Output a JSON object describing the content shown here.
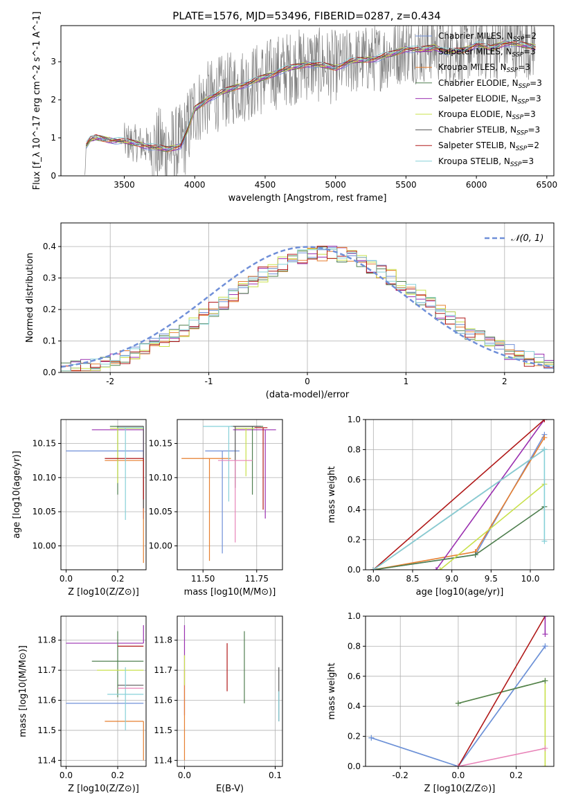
{
  "figure": {
    "title": "PLATE=1576, MJD=53496, FIBERID=0287, z=0.434"
  },
  "colors": {
    "gray": "#808080",
    "blue": "#6f8fd8",
    "orange": "#e67e2e",
    "green": "#4f7f4f",
    "purple": "#9a2fb0",
    "yellowgreen": "#c8e04a",
    "darkgray": "#555555",
    "red": "#b01818",
    "cyan": "#86d0d8",
    "pink": "#e883b8"
  },
  "chart_data": [
    {
      "type": "line",
      "xlabel": "wavelength [Angstrom, rest frame]",
      "ylabel": "Flux [f_λ 10^-17 erg cm^-2 s^-1 A^-1]",
      "xlim": [
        3050,
        6550
      ],
      "ylim": [
        0,
        3.95
      ],
      "xticks": [
        3500,
        4000,
        4500,
        5000,
        5500,
        6000,
        6500
      ],
      "yticks": [
        0,
        1,
        2,
        3
      ],
      "grid": false,
      "legend_position": "top-right",
      "data_series": {
        "name": "",
        "color": "gray",
        "x_range": [
          3220,
          6420
        ],
        "description_values": [
          0.8,
          0.9,
          1.05,
          1.5,
          2.2,
          2.6,
          3.1,
          3.4
        ]
      },
      "model_anchor_points": {
        "x": [
          3220,
          3230,
          3260,
          3300,
          3400,
          3500,
          3600,
          3700,
          3800,
          3900,
          3950,
          4000,
          4100,
          4200,
          4300,
          4400,
          4500,
          4600,
          4700,
          4800,
          4900,
          5000,
          5100,
          5200,
          5300,
          5400,
          5500,
          5600,
          5700,
          5800,
          5900,
          6000,
          6100,
          6200,
          6300,
          6420
        ],
        "y": [
          0,
          0.8,
          0.95,
          1.0,
          0.95,
          0.9,
          0.85,
          0.75,
          0.7,
          0.8,
          1.2,
          1.75,
          2.05,
          2.2,
          2.35,
          2.45,
          2.6,
          2.75,
          2.85,
          2.95,
          2.9,
          2.85,
          3.0,
          3.05,
          3.1,
          3.2,
          3.35,
          3.3,
          3.4,
          3.25,
          3.3,
          3.45,
          3.35,
          3.5,
          3.45,
          3.4
        ]
      },
      "series": [
        {
          "name": "Chabrier MILES, N_SSP=2",
          "label_main": "Chabrier MILES, N",
          "label_sub": "SSP",
          "label_end": "=2",
          "color": "blue"
        },
        {
          "name": "Salpeter MILES, N_SSP=3",
          "label_main": "Salpeter MILES, N",
          "label_sub": "SSP",
          "label_end": "=3",
          "color": "purple"
        },
        {
          "name": "Kroupa MILES, N_SSP=3",
          "label_main": "Kroupa MILES, N",
          "label_sub": "SSP",
          "label_end": "=3",
          "color": "orange"
        },
        {
          "name": "Chabrier ELODIE, N_SSP=3",
          "label_main": "Chabrier ELODIE, N",
          "label_sub": "SSP",
          "label_end": "=3",
          "color": "green"
        },
        {
          "name": "Salpeter ELODIE, N_SSP=3",
          "label_main": "Salpeter ELODIE, N",
          "label_sub": "SSP",
          "label_end": "=3",
          "color": "purple"
        },
        {
          "name": "Kroupa ELODIE, N_SSP=3",
          "label_main": "Kroupa ELODIE, N",
          "label_sub": "SSP",
          "label_end": "=3",
          "color": "yellowgreen"
        },
        {
          "name": "Chabrier STELIB, N_SSP=3",
          "label_main": "Chabrier STELIB, N",
          "label_sub": "SSP",
          "label_end": "=3",
          "color": "darkgray"
        },
        {
          "name": "Salpeter STELIB, N_SSP=2",
          "label_main": "Salpeter STELIB, N",
          "label_sub": "SSP",
          "label_end": "=2",
          "color": "red"
        },
        {
          "name": "Kroupa STELIB, N_SSP=3",
          "label_main": "Kroupa STELIB, N",
          "label_sub": "SSP",
          "label_end": "=3",
          "color": "cyan"
        }
      ]
    },
    {
      "type": "histogram",
      "xlabel": "(data-model)/error",
      "ylabel": "Normed distribution",
      "xlim": [
        -2.5,
        2.5
      ],
      "ylim": [
        0,
        0.475
      ],
      "xticks": [
        -2,
        -1,
        0,
        1,
        2
      ],
      "yticks": [
        0.0,
        0.1,
        0.2,
        0.3,
        0.4
      ],
      "grid": true,
      "legend_position": "top-right",
      "legend_label": "𝒩(0, 1)",
      "bin_width": 0.1,
      "gaussian": {
        "mean": 0,
        "sigma": 1,
        "color": "blue"
      },
      "histogram_colors": [
        "blue",
        "purple",
        "orange",
        "green",
        "yellowgreen",
        "red",
        "cyan"
      ]
    },
    {
      "type": "errorbar",
      "xlabel": "Z [log10(Z/Z⊙)]",
      "ylabel": "age  [log10(age/yr)]",
      "xlim": [
        -0.02,
        0.31
      ],
      "ylim": [
        9.965,
        10.185
      ],
      "xticks": [
        0.0,
        0.2
      ],
      "yticks": [
        10.0,
        10.05,
        10.1,
        10.15
      ],
      "grid": true,
      "points": [
        {
          "x": 0.3,
          "y": 10.139,
          "xerr": [
            0.3,
            0.0
          ],
          "yerr": [
            0.1,
            0.0
          ],
          "color": "blue"
        },
        {
          "x": 0.3,
          "y": 10.17,
          "xerr": [
            0.2,
            0.0
          ],
          "yerr": [
            0.13,
            0.0
          ],
          "color": "purple"
        },
        {
          "x": 0.3,
          "y": 10.125,
          "xerr": [
            0.15,
            0.0
          ],
          "yerr": [
            0.15,
            0.0
          ],
          "color": "orange"
        },
        {
          "x": 0.2,
          "y": 10.175,
          "xerr": [
            0.03,
            0.1
          ],
          "yerr": [
            0.1,
            0.0
          ],
          "color": "green"
        },
        {
          "x": 0.2,
          "y": 10.172,
          "xerr": [
            0.03,
            0.1
          ],
          "yerr": [
            0.08,
            0.0
          ],
          "color": "yellowgreen"
        },
        {
          "x": 0.3,
          "y": 10.175,
          "xerr": [
            0.1,
            0.0
          ],
          "yerr": [
            0.12,
            0.0
          ],
          "color": "darkgray"
        },
        {
          "x": 0.3,
          "y": 10.128,
          "xerr": [
            0.15,
            0.0
          ],
          "yerr": [
            0.06,
            0.0
          ],
          "color": "red"
        },
        {
          "x": 0.23,
          "y": 10.173,
          "xerr": [
            0.03,
            0.07
          ],
          "yerr": [
            0.135,
            0.0
          ],
          "color": "cyan"
        }
      ]
    },
    {
      "type": "errorbar",
      "xlabel": "mass [log10(M/M⊙)]",
      "ylabel": "",
      "xlim": [
        11.38,
        11.87
      ],
      "ylim": [
        9.965,
        10.185
      ],
      "xticks": [
        11.5,
        11.75
      ],
      "yticks": [
        10.0,
        10.05,
        10.1,
        10.15
      ],
      "grid": true,
      "points": [
        {
          "x": 11.59,
          "y": 10.139,
          "xerr": [
            0.08,
            0.08
          ],
          "yerr": [
            0.15,
            0.0
          ],
          "color": "blue"
        },
        {
          "x": 11.79,
          "y": 10.17,
          "xerr": [
            0.15,
            0.05
          ],
          "yerr": [
            0.13,
            0.0
          ],
          "color": "purple"
        },
        {
          "x": 11.53,
          "y": 10.128,
          "xerr": [
            0.13,
            0.1
          ],
          "yerr": [
            0.15,
            0.0
          ],
          "color": "orange"
        },
        {
          "x": 11.73,
          "y": 10.175,
          "xerr": [
            0.1,
            0.05
          ],
          "yerr": [
            0.1,
            0.0
          ],
          "color": "green"
        },
        {
          "x": 11.7,
          "y": 10.172,
          "xerr": [
            0.05,
            0.04
          ],
          "yerr": [
            0.07,
            0.0
          ],
          "color": "yellowgreen"
        },
        {
          "x": 11.65,
          "y": 10.175,
          "xerr": [
            0.02,
            0.12
          ],
          "yerr": [
            0.09,
            0.0
          ],
          "color": "darkgray"
        },
        {
          "x": 11.78,
          "y": 10.173,
          "xerr": [
            0.04,
            0.02
          ],
          "yerr": [
            0.12,
            0.0
          ],
          "color": "red"
        },
        {
          "x": 11.62,
          "y": 10.175,
          "xerr": [
            0.12,
            0.02
          ],
          "yerr": [
            0.11,
            0.0
          ],
          "color": "cyan"
        },
        {
          "x": 11.65,
          "y": 10.125,
          "xerr": [
            0.08,
            0.08
          ],
          "yerr": [
            0.12,
            0.0
          ],
          "color": "pink"
        }
      ]
    },
    {
      "type": "line",
      "xlabel": "age  [log10(age/yr)]",
      "ylabel": "mass weight",
      "xlim": [
        7.9,
        10.3
      ],
      "ylim": [
        0.0,
        1.0
      ],
      "xticks": [
        8.0,
        8.5,
        9.0,
        9.5,
        10.0
      ],
      "yticks": [
        0.0,
        0.2,
        0.4,
        0.6,
        0.8,
        1.0
      ],
      "grid": true,
      "series": [
        {
          "color": "blue",
          "x": [
            8.0,
            9.3,
            10.18
          ],
          "y": [
            0.0,
            0.1,
            0.9
          ]
        },
        {
          "color": "orange",
          "x": [
            8.0,
            9.3,
            10.18
          ],
          "y": [
            0.0,
            0.12,
            0.88
          ]
        },
        {
          "color": "purple",
          "x": [
            8.8,
            10.18
          ],
          "y": [
            0.0,
            1.0
          ]
        },
        {
          "color": "green",
          "x": [
            8.0,
            9.3,
            10.18
          ],
          "y": [
            0.0,
            0.1,
            0.42
          ]
        },
        {
          "color": "yellowgreen",
          "x": [
            8.85,
            10.18
          ],
          "y": [
            0.0,
            0.57
          ]
        },
        {
          "color": "darkgray",
          "x": [
            8.0,
            10.18
          ],
          "y": [
            0.0,
            0.8
          ]
        },
        {
          "color": "red",
          "x": [
            8.0,
            10.18
          ],
          "y": [
            0.0,
            1.0
          ]
        },
        {
          "color": "cyan",
          "x": [
            8.0,
            10.18,
            10.18
          ],
          "y": [
            0.0,
            0.8,
            0.19
          ]
        }
      ]
    },
    {
      "type": "errorbar",
      "xlabel": "Z [log10(Z/Z⊙)]",
      "ylabel": "mass [log10(M/M⊙)]",
      "xlim": [
        -0.02,
        0.31
      ],
      "ylim": [
        11.38,
        11.88
      ],
      "xticks": [
        0.0,
        0.2
      ],
      "yticks": [
        11.4,
        11.5,
        11.6,
        11.7,
        11.8
      ],
      "grid": true,
      "points": [
        {
          "x": 0.3,
          "y": 11.59,
          "xerr": [
            0.3,
            0.0
          ],
          "yerr": [
            0.0,
            0.0
          ],
          "color": "blue"
        },
        {
          "x": 0.3,
          "y": 11.79,
          "xerr": [
            0.3,
            0.0
          ],
          "yerr": [
            0.0,
            0.06
          ],
          "color": "purple"
        },
        {
          "x": 0.3,
          "y": 11.53,
          "xerr": [
            0.15,
            0.0
          ],
          "yerr": [
            0.13,
            0.0
          ],
          "color": "orange"
        },
        {
          "x": 0.2,
          "y": 11.73,
          "xerr": [
            0.1,
            0.1
          ],
          "yerr": [
            0.12,
            0.1
          ],
          "color": "green"
        },
        {
          "x": 0.2,
          "y": 11.7,
          "xerr": [
            0.08,
            0.1
          ],
          "yerr": [
            0.0,
            0.0
          ],
          "color": "yellowgreen"
        },
        {
          "x": 0.3,
          "y": 11.65,
          "xerr": [
            0.1,
            0.0
          ],
          "yerr": [
            0.0,
            0.0
          ],
          "color": "darkgray"
        },
        {
          "x": 0.3,
          "y": 11.78,
          "xerr": [
            0.1,
            0.0
          ],
          "yerr": [
            0.0,
            0.0
          ],
          "color": "red"
        },
        {
          "x": 0.23,
          "y": 11.62,
          "xerr": [
            0.07,
            0.07
          ],
          "yerr": [
            0.12,
            0.09
          ],
          "color": "cyan"
        },
        {
          "x": 0.3,
          "y": 11.64,
          "xerr": [
            0.1,
            0.0
          ],
          "yerr": [
            0.0,
            0.0
          ],
          "color": "pink"
        }
      ]
    },
    {
      "type": "errorbar",
      "xlabel": "E(B-V)",
      "ylabel": "",
      "xlim": [
        -0.008,
        0.108
      ],
      "ylim": [
        11.38,
        11.88
      ],
      "xticks": [
        0.0,
        0.1
      ],
      "yticks": [
        11.4,
        11.5,
        11.6,
        11.7,
        11.8
      ],
      "grid": true,
      "points": [
        {
          "x": 0.0,
          "y": 11.75,
          "xerr": [
            0,
            0
          ],
          "yerr": [
            0.2,
            0.1
          ],
          "color": "purple"
        },
        {
          "x": 0.0,
          "y": 11.6,
          "xerr": [
            0,
            0
          ],
          "yerr": [
            0.2,
            0.1
          ],
          "color": "orange"
        },
        {
          "x": 0.0,
          "y": 11.7,
          "xerr": [
            0,
            0
          ],
          "yerr": [
            0.05,
            0.05
          ],
          "color": "yellowgreen"
        },
        {
          "x": 0.047,
          "y": 11.72,
          "xerr": [
            0,
            0
          ],
          "yerr": [
            0.09,
            0.07
          ],
          "color": "red"
        },
        {
          "x": 0.066,
          "y": 11.71,
          "xerr": [
            0,
            0
          ],
          "yerr": [
            0.12,
            0.12
          ],
          "color": "green"
        },
        {
          "x": 0.104,
          "y": 11.62,
          "xerr": [
            0,
            0
          ],
          "yerr": [
            0.09,
            0.09
          ],
          "color": "darkgray"
        },
        {
          "x": 0.104,
          "y": 11.58,
          "xerr": [
            0,
            0
          ],
          "yerr": [
            0.05,
            0.05
          ],
          "color": "cyan"
        }
      ]
    },
    {
      "type": "line",
      "xlabel": "Z [log10(Z/Z⊙)]",
      "ylabel": "mass weight",
      "xlim": [
        -0.32,
        0.33
      ],
      "ylim": [
        0.0,
        1.0
      ],
      "xticks": [
        -0.2,
        0.0,
        0.2
      ],
      "yticks": [
        0.0,
        0.2,
        0.4,
        0.6,
        0.8,
        1.0
      ],
      "grid": true,
      "series": [
        {
          "color": "cyan",
          "x": [
            -0.3,
            0.0,
            0.3
          ],
          "y": [
            0.19,
            0.0,
            0.8
          ]
        },
        {
          "color": "blue",
          "x": [
            -0.3,
            0.0,
            0.3
          ],
          "y": [
            0.19,
            0.0,
            0.8
          ]
        },
        {
          "color": "yellowgreen",
          "x": [
            0.0,
            0.3,
            0.3
          ],
          "y": [
            0.42,
            0.57,
            0.0
          ]
        },
        {
          "color": "green",
          "x": [
            0.0,
            0.3
          ],
          "y": [
            0.42,
            0.57
          ]
        },
        {
          "color": "red",
          "x": [
            0.0,
            0.3
          ],
          "y": [
            0.0,
            1.0
          ]
        },
        {
          "color": "pink",
          "x": [
            0.0,
            0.3
          ],
          "y": [
            0.0,
            0.12
          ]
        },
        {
          "color": "purple",
          "x": [
            0.3,
            0.3
          ],
          "y": [
            1.0,
            0.88
          ]
        }
      ]
    }
  ]
}
